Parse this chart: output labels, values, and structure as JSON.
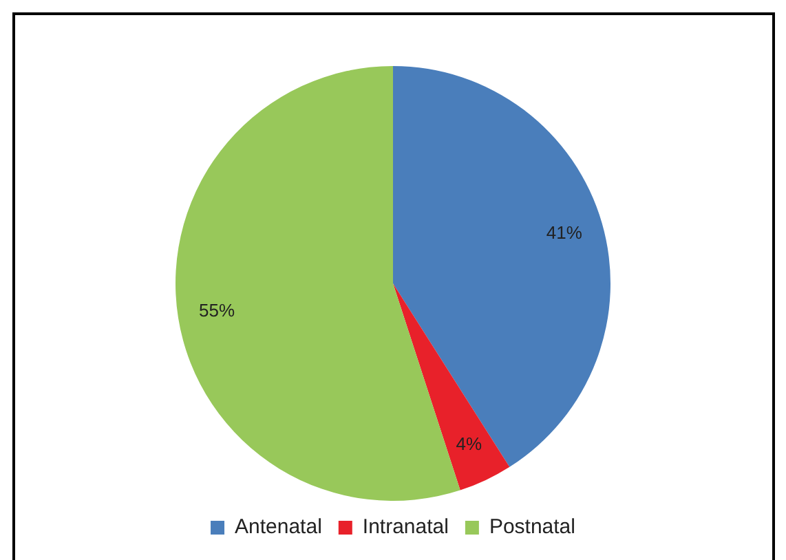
{
  "chart_data": {
    "type": "pie",
    "categories": [
      "Antenatal",
      "Intranatal",
      "Postnatal"
    ],
    "values": [
      41,
      4,
      55
    ],
    "colors": [
      "#4a7ebb",
      "#e8212a",
      "#98c85a"
    ],
    "value_labels": [
      "41%",
      "4%",
      "55%"
    ],
    "legend": "bottom"
  }
}
